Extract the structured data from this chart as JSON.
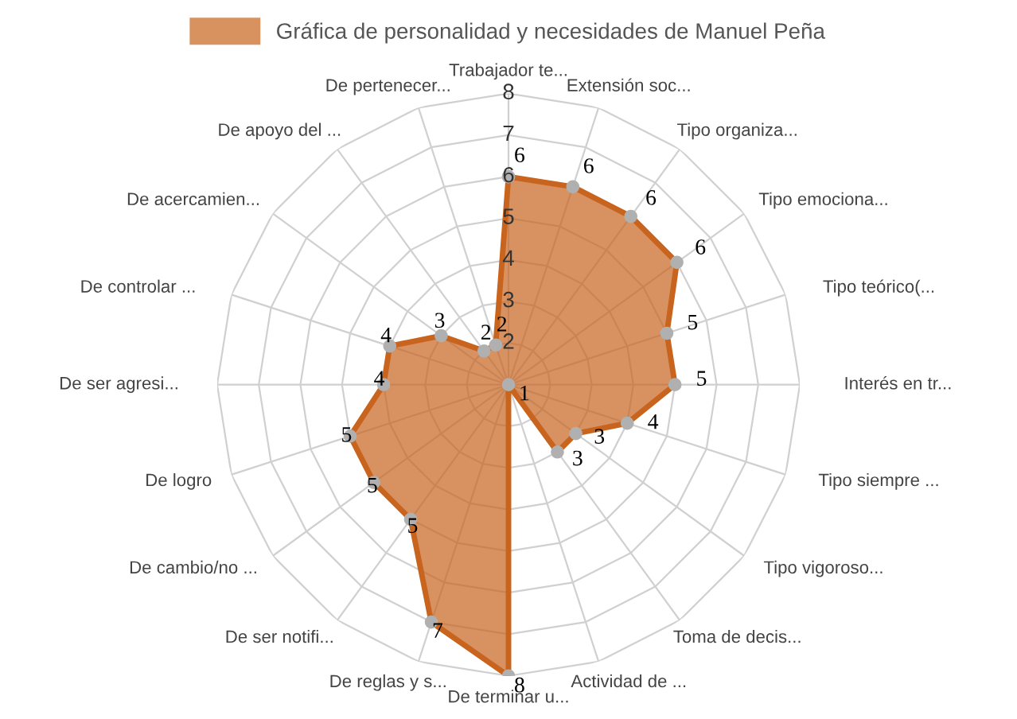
{
  "chart_data": {
    "type": "radar",
    "categories": [
      "Trabajador te...",
      "Extensión soc...",
      "Tipo organiza...",
      "Tipo emociona...",
      "Tipo teórico(...",
      "Interés en tr...",
      "Tipo siempre ...",
      "Tipo vigoroso...",
      "Toma de decis...",
      "Actividad de ...",
      "De terminar u...",
      "De reglas y s...",
      "De ser notifi...",
      "De cambio/no ...",
      "De logro",
      "De ser agresi...",
      "De controlar ...",
      "De acercamien...",
      "De apoyo del ...",
      "De pertenecer..."
    ],
    "series": [
      {
        "name": "Gráfica de personalidad y necesidades de Manuel Peña",
        "color": "#c8641e",
        "values": [
          6,
          6,
          6,
          6,
          5,
          5,
          4,
          3,
          3,
          1,
          8,
          7,
          5,
          5,
          5,
          4,
          4,
          3,
          2,
          2
        ]
      }
    ],
    "ylim": [
      1,
      8
    ],
    "yticks": [
      2,
      3,
      4,
      5,
      6,
      7,
      8
    ],
    "grid": true,
    "legend": "top",
    "data_labels": true,
    "marker": "circle"
  }
}
